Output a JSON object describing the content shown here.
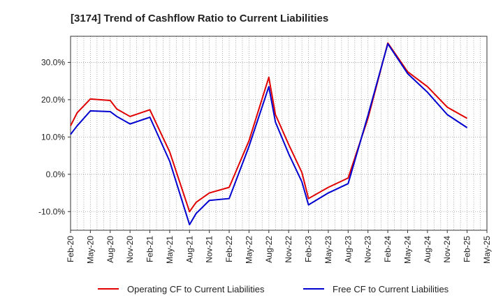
{
  "chart_data": {
    "type": "line",
    "title": "[3174]  Trend of Cashflow Ratio to Current Liabilities",
    "xlabel": "",
    "ylabel": "",
    "x_ticks": [
      "Feb-20",
      "May-20",
      "Aug-20",
      "Nov-20",
      "Feb-21",
      "May-21",
      "Aug-21",
      "Nov-21",
      "Feb-22",
      "May-22",
      "Aug-22",
      "Nov-22",
      "Feb-23",
      "May-23",
      "Aug-23",
      "Nov-23",
      "Feb-24",
      "May-24",
      "Aug-24",
      "Nov-24",
      "Feb-25",
      "May-25"
    ],
    "y_ticks": [
      "30.0%",
      "20.0%",
      "10.0%",
      "0.0%",
      "-10.0%"
    ],
    "y_tick_values": [
      30,
      20,
      10,
      0,
      -10
    ],
    "ylim": [
      -15,
      37
    ],
    "x_month_range": [
      "2020-02",
      "2025-05"
    ],
    "grid": true,
    "legend_position": "bottom",
    "series": [
      {
        "name": "Operating CF to Current Liabilities",
        "color": "#e00000",
        "points": [
          [
            "2020-02",
            13.0
          ],
          [
            "2020-03",
            16.5
          ],
          [
            "2020-05",
            20.2
          ],
          [
            "2020-08",
            19.8
          ],
          [
            "2020-09",
            17.5
          ],
          [
            "2020-11",
            15.5
          ],
          [
            "2021-02",
            17.3
          ],
          [
            "2021-05",
            6.0
          ],
          [
            "2021-08",
            -10.0
          ],
          [
            "2021-09",
            -7.5
          ],
          [
            "2021-11",
            -5.0
          ],
          [
            "2022-02",
            -3.5
          ],
          [
            "2022-05",
            9.0
          ],
          [
            "2022-08",
            26.0
          ],
          [
            "2022-09",
            16.0
          ],
          [
            "2022-11",
            8.0
          ],
          [
            "2023-01",
            0.5
          ],
          [
            "2023-02",
            -6.5
          ],
          [
            "2023-05",
            -3.5
          ],
          [
            "2023-08",
            -1.0
          ],
          [
            "2023-11",
            15.0
          ],
          [
            "2024-02",
            35.2
          ],
          [
            "2024-05",
            27.5
          ],
          [
            "2024-08",
            23.5
          ],
          [
            "2024-11",
            18.0
          ],
          [
            "2025-02",
            15.0
          ]
        ]
      },
      {
        "name": "Free CF to Current Liabilities",
        "color": "#0000d0",
        "points": [
          [
            "2020-02",
            10.7
          ],
          [
            "2020-03",
            13.0
          ],
          [
            "2020-05",
            17.0
          ],
          [
            "2020-08",
            16.8
          ],
          [
            "2020-09",
            15.5
          ],
          [
            "2020-11",
            13.5
          ],
          [
            "2021-02",
            15.3
          ],
          [
            "2021-05",
            3.5
          ],
          [
            "2021-08",
            -13.5
          ],
          [
            "2021-09",
            -10.5
          ],
          [
            "2021-11",
            -7.0
          ],
          [
            "2022-02",
            -6.5
          ],
          [
            "2022-05",
            7.5
          ],
          [
            "2022-08",
            23.5
          ],
          [
            "2022-09",
            14.0
          ],
          [
            "2022-11",
            5.5
          ],
          [
            "2023-01",
            -2.0
          ],
          [
            "2023-02",
            -8.2
          ],
          [
            "2023-05",
            -5.0
          ],
          [
            "2023-08",
            -2.5
          ],
          [
            "2023-11",
            15.8
          ],
          [
            "2024-02",
            35.0
          ],
          [
            "2024-05",
            27.0
          ],
          [
            "2024-08",
            22.0
          ],
          [
            "2024-11",
            16.0
          ],
          [
            "2025-02",
            12.5
          ]
        ]
      }
    ]
  }
}
